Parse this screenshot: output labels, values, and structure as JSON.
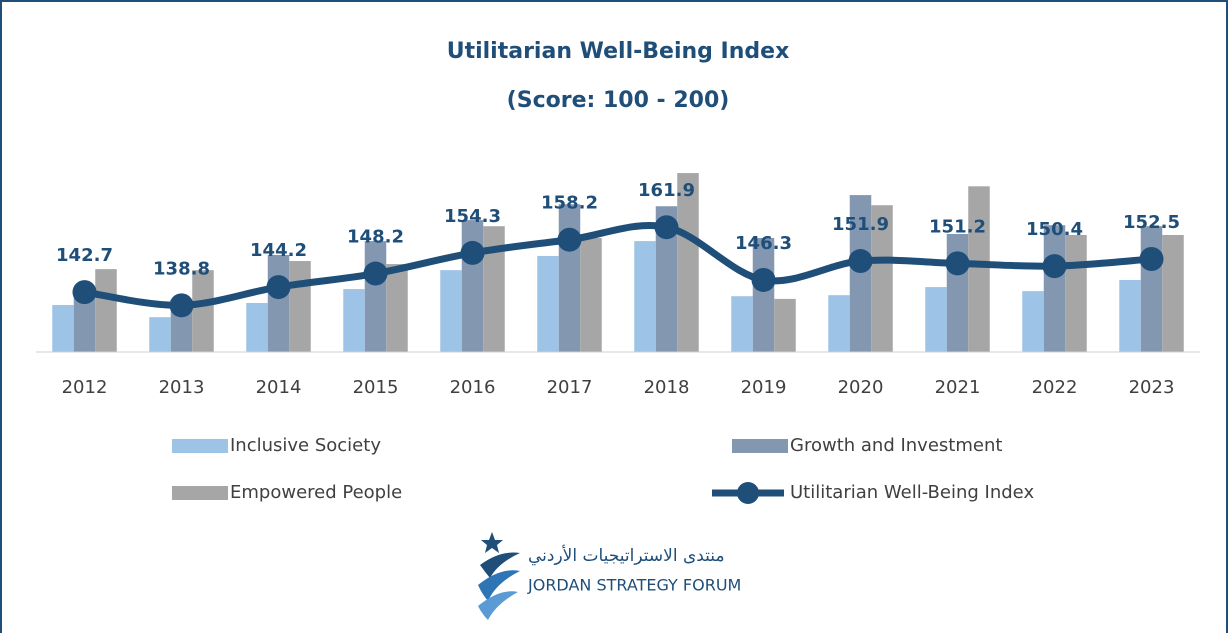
{
  "chart_data": {
    "type": "bar_line",
    "title": "Utilitarian Well-Being Index",
    "subtitle": "(Score: 100 - 200)",
    "categories": [
      "2012",
      "2013",
      "2014",
      "2015",
      "2016",
      "2017",
      "2018",
      "2019",
      "2020",
      "2021",
      "2022",
      "2023"
    ],
    "series": [
      {
        "name": "Inclusive Society",
        "type": "bar",
        "color": "#9dc3e6",
        "values": [
          138.9,
          135.3,
          139.5,
          143.6,
          149.2,
          153.4,
          157.8,
          141.5,
          141.8,
          144.2,
          143.0,
          146.3
        ]
      },
      {
        "name": "Growth and Investment",
        "type": "bar",
        "color": "#8497b0",
        "values": [
          143.3,
          140.4,
          153.7,
          157.8,
          164.0,
          168.7,
          168.1,
          158.7,
          171.4,
          159.9,
          162.5,
          162.2
        ]
      },
      {
        "name": "Empowered People",
        "type": "bar",
        "color": "#a6a6a6",
        "values": [
          149.5,
          149.2,
          151.9,
          151.0,
          162.2,
          158.7,
          177.9,
          140.7,
          168.4,
          174.0,
          159.6,
          159.6
        ]
      },
      {
        "name": "Utilitarian Well-Being Index",
        "type": "line",
        "color": "#1f4e79",
        "values": [
          142.7,
          138.8,
          144.2,
          148.2,
          154.3,
          158.2,
          161.9,
          146.3,
          151.9,
          151.2,
          150.4,
          152.5
        ]
      }
    ],
    "ylim": [
      125,
      180
    ]
  },
  "logo": {
    "arabic": "منتدى الاستراتيجيات الأردني",
    "english": "JORDAN STRATEGY FORUM"
  }
}
